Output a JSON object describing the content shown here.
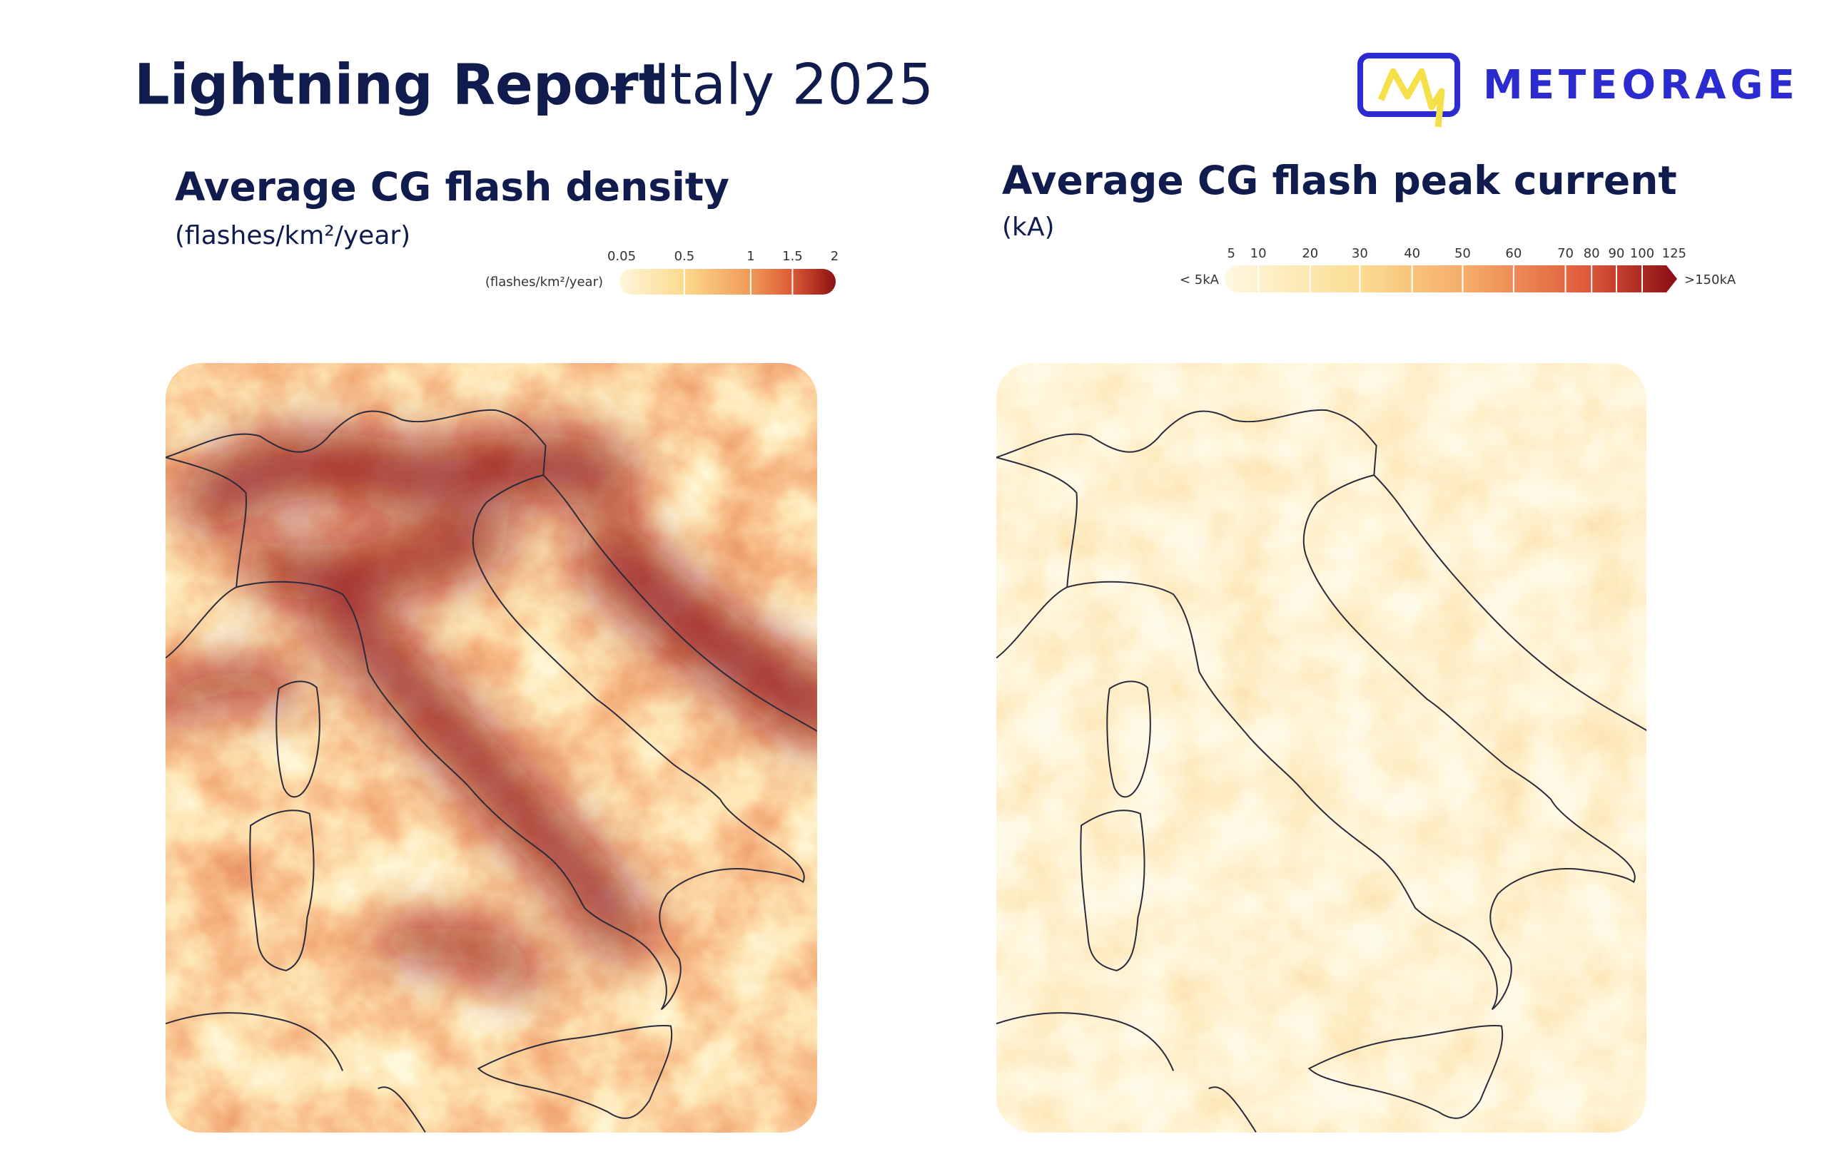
{
  "header": {
    "title": "Lightning Report",
    "subtitle": "– Italy 2025",
    "logo": "METEORAGE"
  },
  "panels": [
    {
      "title": "Average CG flash density",
      "unit": "(flashes/km²/year)",
      "legend": {
        "unit": "(flashes/km²/year)",
        "ticks": [
          0.05,
          0.5,
          1,
          1.5,
          2
        ]
      }
    },
    {
      "title": "Average CG flash peak current",
      "unit": "(kA)",
      "legend": {
        "min_label": "< 5kA",
        "max_label": ">150kA",
        "ticks": [
          5,
          10,
          20,
          30,
          40,
          50,
          60,
          70,
          80,
          90,
          100,
          125
        ]
      }
    }
  ]
}
